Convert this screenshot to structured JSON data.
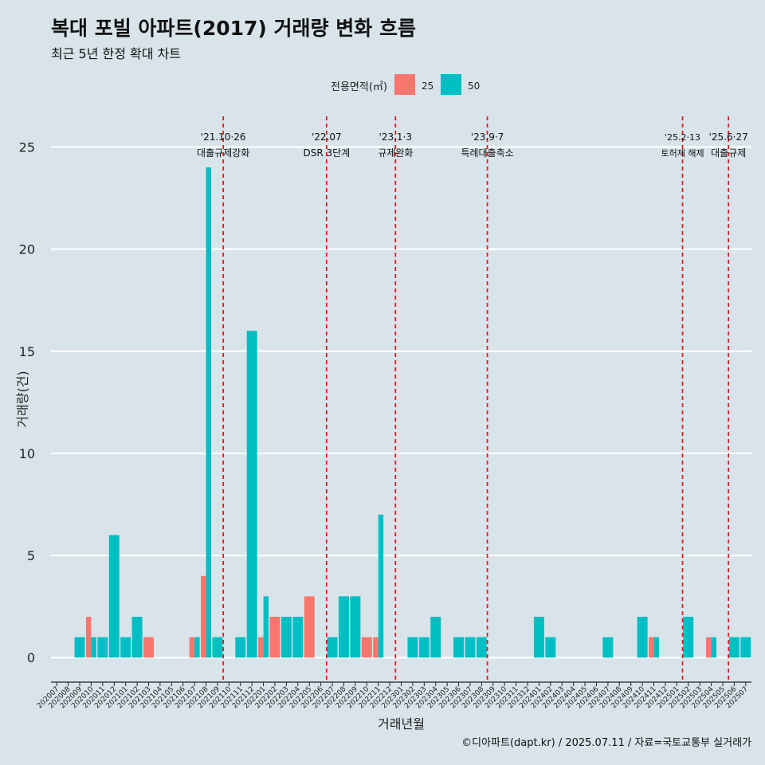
{
  "title": "복대 포빌 아파트(2017) 거래량 변화 흐름",
  "subtitle": "최근 5년 한정 확대 차트",
  "caption": "©디아파트(dapt.kr) / 2025.07.11 / 자료=국토교통부 실거래가",
  "colors": {
    "background": "#d8e4ea",
    "s25": "#f8766d",
    "s50": "#00bfc4",
    "vline": "#e31a1c",
    "grid": "#ffffff"
  },
  "chart_data": {
    "type": "bar",
    "xlabel": "거래년월",
    "ylabel": "거래량(건)",
    "ylim": [
      -1.2,
      26.5
    ],
    "yticks": [
      0,
      5,
      10,
      15,
      20,
      25
    ],
    "grid": true,
    "legend": {
      "title": "전용면적(㎡)",
      "placement": "top-center"
    },
    "categories": [
      "202007",
      "202008",
      "202009",
      "202010",
      "202011",
      "202012",
      "202101",
      "202102",
      "202103",
      "202104",
      "202105",
      "202106",
      "202107",
      "202108",
      "202109",
      "202110",
      "202111",
      "202112",
      "202201",
      "202202",
      "202203",
      "202204",
      "202205",
      "202206",
      "202207",
      "202208",
      "202209",
      "202210",
      "202211",
      "202212",
      "202301",
      "202302",
      "202303",
      "202304",
      "202305",
      "202306",
      "202307",
      "202308",
      "202309",
      "202310",
      "202311",
      "202312",
      "202401",
      "202402",
      "202403",
      "202404",
      "202405",
      "202406",
      "202407",
      "202408",
      "202409",
      "202410",
      "202411",
      "202412",
      "202501",
      "202502",
      "202503",
      "202504",
      "202505",
      "202506",
      "202507"
    ],
    "series": [
      {
        "name": "25",
        "color": "#f8766d",
        "values": [
          0,
          0,
          0,
          2,
          0,
          0,
          0,
          0,
          1,
          0,
          0,
          0,
          1,
          4,
          0,
          0,
          0,
          0,
          1,
          2,
          0,
          0,
          3,
          0,
          0,
          0,
          0,
          1,
          1,
          0,
          0,
          0,
          0,
          0,
          0,
          0,
          0,
          0,
          0,
          0,
          0,
          0,
          0,
          0,
          0,
          0,
          0,
          0,
          0,
          0,
          0,
          0,
          1,
          0,
          0,
          0,
          0,
          1,
          0,
          0,
          0
        ]
      },
      {
        "name": "50",
        "color": "#00bfc4",
        "values": [
          0,
          0,
          1,
          1,
          1,
          6,
          1,
          2,
          0,
          0,
          0,
          0,
          1,
          24,
          1,
          0,
          1,
          16,
          3,
          0,
          2,
          2,
          0,
          0,
          1,
          3,
          3,
          0,
          7,
          0,
          0,
          1,
          1,
          2,
          0,
          1,
          1,
          1,
          0,
          0,
          0,
          0,
          2,
          1,
          0,
          0,
          0,
          0,
          1,
          0,
          0,
          2,
          1,
          0,
          0,
          2,
          0,
          1,
          0,
          1,
          1
        ]
      }
    ],
    "annotations": [
      {
        "x": "202110",
        "line1": "'21.10·26",
        "line2": "대출규제강화"
      },
      {
        "x": "202207",
        "line1": "'22.07",
        "line2": "DSR 3단계"
      },
      {
        "x": "202301",
        "line1": "'23.1·3",
        "line2": "규제완화"
      },
      {
        "x": "202309",
        "line1": "'23.9·7",
        "line2": "특례대출축소"
      },
      {
        "x": "202502",
        "line1": "'25.2·13",
        "line2": "토허제 해제"
      },
      {
        "x": "202506",
        "line1": "'25.6·27",
        "line2": "대출규제"
      }
    ]
  }
}
